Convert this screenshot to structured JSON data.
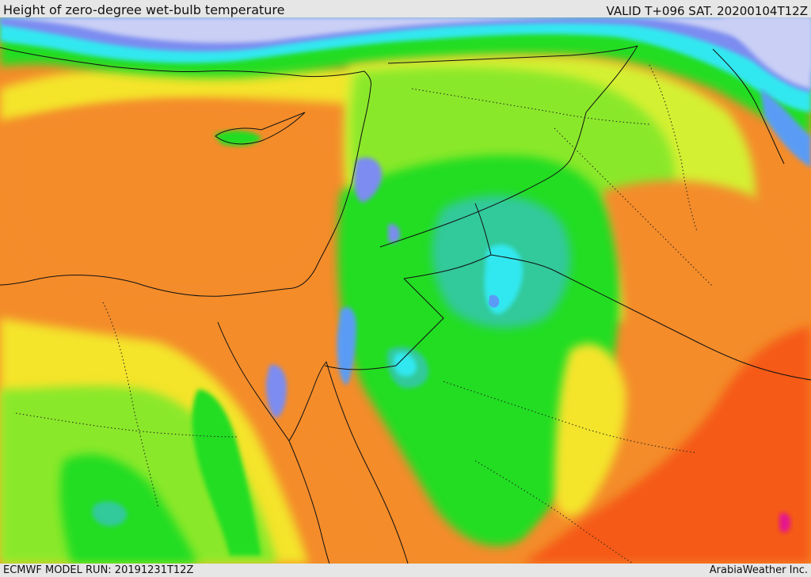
{
  "header": {
    "title": "Height of zero-degree wet-bulb temperature",
    "valid": "VALID T+096 SAT. 20200104T12Z"
  },
  "footer": {
    "model_run": "ECMWF MODEL RUN: 20191231T12Z",
    "credit": "ArabiaWeather Inc."
  },
  "colors": {
    "very_low": "#c9cff5",
    "low_blue": "#7c8cf0",
    "mid_blue": "#5a9cf5",
    "cyan": "#33e8f0",
    "teal": "#33c99b",
    "green": "#22dd22",
    "light_green": "#8ae82a",
    "yellow_green": "#d4f030",
    "yellow": "#f4e42a",
    "orange_yellow": "#f7b41e",
    "orange": "#f48c2a",
    "red_orange": "#f55a14",
    "magenta": "#e6148c"
  }
}
